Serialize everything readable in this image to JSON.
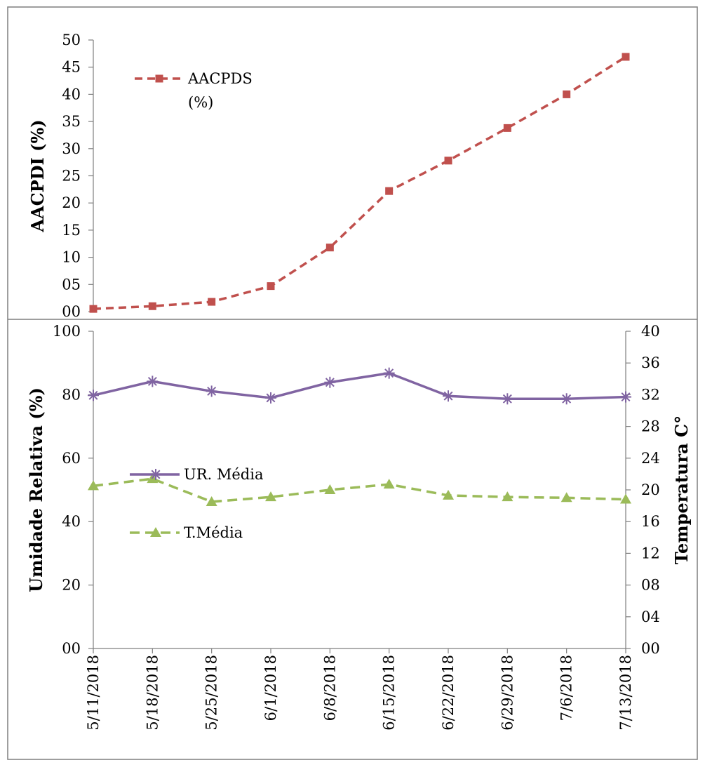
{
  "chart_data": [
    {
      "type": "line",
      "x": [
        "5/11/2018",
        "5/18/2018",
        "5/25/2018",
        "6/1/2018",
        "6/8/2018",
        "6/15/2018",
        "6/22/2018",
        "6/29/2018",
        "7/6/2018",
        "7/13/2018"
      ],
      "ylabel": "AACPDI (%)",
      "ylim": [
        0,
        50
      ],
      "yticks": [
        "00",
        "05",
        "10",
        "15",
        "20",
        "25",
        "30",
        "35",
        "40",
        "45",
        "50"
      ],
      "series": [
        {
          "name": "AACPDS (%)",
          "name_lines": [
            "AACPDS",
            "(%)"
          ],
          "values": [
            0.5,
            1.0,
            1.8,
            4.7,
            11.8,
            22.2,
            27.8,
            33.8,
            40.0,
            46.9
          ],
          "color": "#c0504d",
          "style": "dashed",
          "marker": "square"
        }
      ],
      "legend": "top-left",
      "grid": false
    },
    {
      "type": "line",
      "x": [
        "5/11/2018",
        "5/18/2018",
        "5/25/2018",
        "6/1/2018",
        "6/8/2018",
        "6/15/2018",
        "6/22/2018",
        "6/29/2018",
        "7/6/2018",
        "7/13/2018"
      ],
      "ylabel": "Umidade Relativa (%)",
      "ylim": [
        0,
        100
      ],
      "yticks": [
        "00",
        "20",
        "40",
        "60",
        "80",
        "100"
      ],
      "y2label": "Temperatura C°",
      "y2lim": [
        0,
        40
      ],
      "y2ticks": [
        "00",
        "04",
        "08",
        "12",
        "16",
        "20",
        "24",
        "28",
        "32",
        "36",
        "40"
      ],
      "series": [
        {
          "name": "UR. Média",
          "axis": "left",
          "values": [
            79.8,
            84.2,
            81.1,
            79.0,
            83.9,
            86.8,
            79.6,
            78.7,
            78.7,
            79.3
          ],
          "color": "#8064a2",
          "style": "solid",
          "marker": "star"
        },
        {
          "name": "T.Média",
          "axis": "right",
          "values": [
            20.5,
            21.4,
            18.5,
            19.1,
            20.0,
            20.7,
            19.3,
            19.1,
            19.0,
            18.8
          ],
          "color": "#9bbb59",
          "style": "dashed",
          "marker": "triangle"
        }
      ],
      "legend": "left",
      "grid": false
    }
  ]
}
